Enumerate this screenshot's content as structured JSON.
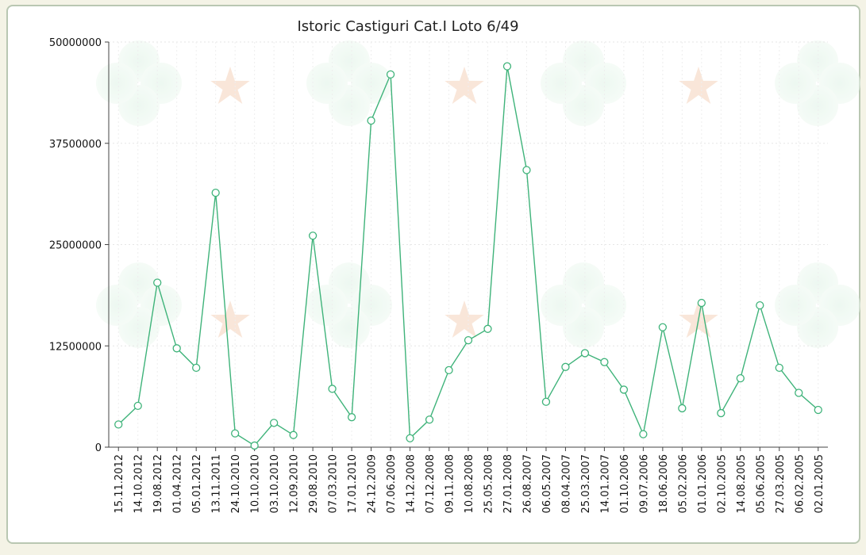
{
  "chart_data": {
    "type": "line",
    "title": "Istoric Castiguri Cat.I Loto 6/49",
    "xlabel": "",
    "ylabel": "",
    "ylim": [
      0,
      50000000
    ],
    "yticks": [
      0,
      12500000,
      25000000,
      37500000,
      50000000
    ],
    "ytick_labels": [
      "0",
      "12500000",
      "25000000",
      "37500000",
      "50000000"
    ],
    "grid": true,
    "line_color": "#3fb37a",
    "categories": [
      "15.11.2012",
      "14.10.2012",
      "19.08.2012",
      "01.04.2012",
      "05.01.2012",
      "13.11.2011",
      "24.10.2010",
      "10.10.2010",
      "03.10.2010",
      "12.09.2010",
      "29.08.2010",
      "07.03.2010",
      "17.01.2010",
      "24.12.2009",
      "07.06.2009",
      "14.12.2008",
      "07.12.2008",
      "09.11.2008",
      "10.08.2008",
      "25.05.2008",
      "27.01.2008",
      "26.08.2007",
      "06.05.2007",
      "08.04.2007",
      "25.03.2007",
      "14.01.2007",
      "01.10.2006",
      "09.07.2006",
      "18.06.2006",
      "05.02.2006",
      "01.01.2006",
      "02.10.2005",
      "14.08.2005",
      "05.06.2005",
      "27.03.2005",
      "06.02.2005",
      "02.01.2005"
    ],
    "values": [
      2800000,
      5100000,
      20300000,
      12200000,
      9800000,
      31400000,
      1700000,
      200000,
      3000000,
      1500000,
      26100000,
      7200000,
      3700000,
      40300000,
      46000000,
      1100000,
      3400000,
      9500000,
      13200000,
      14600000,
      47000000,
      34200000,
      5600000,
      9900000,
      11600000,
      10500000,
      7100000,
      1600000,
      14800000,
      4800000,
      17800000,
      4200000,
      8500000,
      17500000,
      9800000,
      6700000,
      4600000
    ]
  }
}
